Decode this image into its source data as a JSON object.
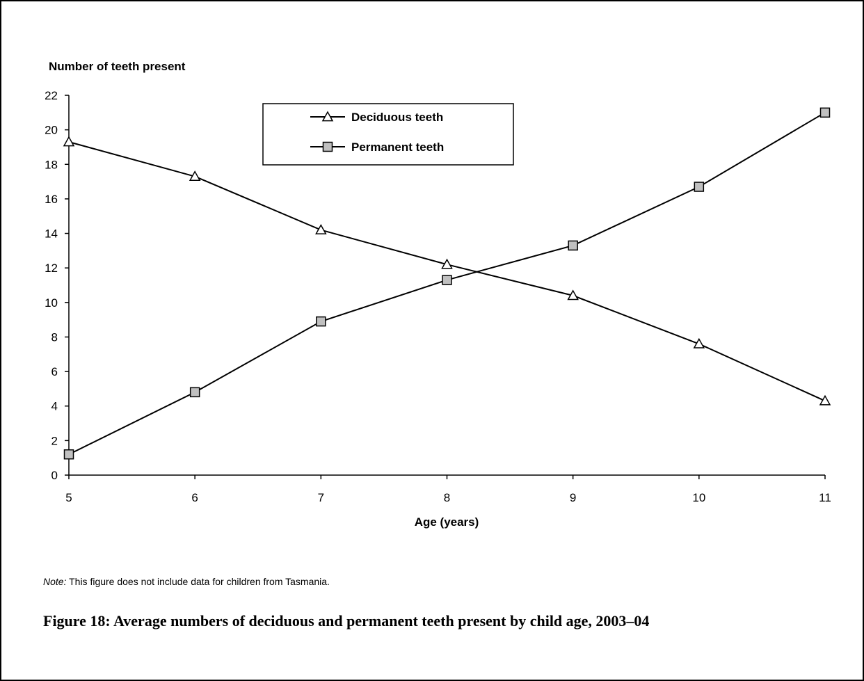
{
  "chart_data": {
    "type": "line",
    "ylabel": "Number of teeth present",
    "xlabel": "Age (years)",
    "x": [
      5,
      6,
      7,
      8,
      9,
      10,
      11
    ],
    "xlim": [
      5,
      11
    ],
    "ylim": [
      0,
      22
    ],
    "yticks": [
      0,
      2,
      4,
      6,
      8,
      10,
      12,
      14,
      16,
      18,
      20,
      22
    ],
    "grid": false,
    "legend_position": "top-center",
    "series": [
      {
        "name": "Deciduous teeth",
        "marker": "triangle-open",
        "values": [
          19.3,
          17.3,
          14.2,
          12.2,
          10.4,
          7.6,
          4.3
        ]
      },
      {
        "name": "Permanent teeth",
        "marker": "square-grey",
        "color": "#c0c0c0",
        "values": [
          1.2,
          4.8,
          8.9,
          11.3,
          13.3,
          16.7,
          21.0
        ]
      }
    ]
  },
  "note": {
    "label": "Note:",
    "text": " This figure does not include data for children from Tasmania."
  },
  "caption": "Figure 18: Average numbers of deciduous and permanent teeth present by child age, 2003–04"
}
